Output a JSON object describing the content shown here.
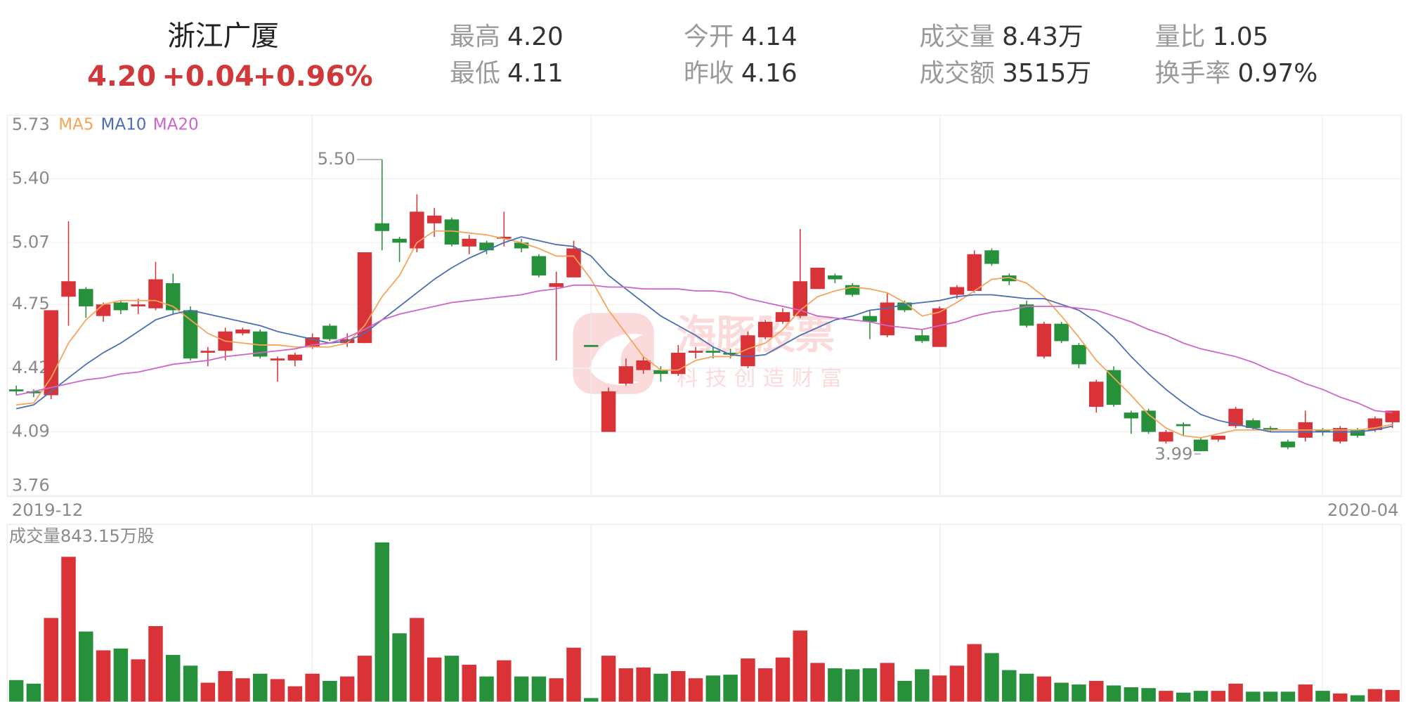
{
  "header": {
    "name": "浙江广厦",
    "price": "4.20",
    "change": "+0.04",
    "change_pct": "+0.96%",
    "stats": [
      {
        "label": "最高",
        "value": "4.20"
      },
      {
        "label": "最低",
        "value": "4.11"
      },
      {
        "label": "今开",
        "value": "4.14"
      },
      {
        "label": "昨收",
        "value": "4.16"
      },
      {
        "label": "成交量",
        "value": "8.43万"
      },
      {
        "label": "成交额",
        "value": "3515万"
      },
      {
        "label": "量比",
        "value": "1.05"
      },
      {
        "label": "换手率",
        "value": "0.97%"
      }
    ]
  },
  "watermark": {
    "name": "海豚股票",
    "slogan": "科技创造财富"
  },
  "chart_data": [
    {
      "type": "candlestick",
      "x_labels": [
        "2019-12",
        "2020-04"
      ],
      "ylim": [
        3.76,
        5.73
      ],
      "yticks": [
        5.73,
        {
          "value": 5.4,
          "label": "5.40"
        },
        5.07,
        4.75,
        4.42,
        4.09,
        3.76
      ],
      "grid": true,
      "up_color": "#d93237",
      "down_color": "#27903a",
      "open": [
        4.31,
        4.3,
        4.28,
        4.79,
        4.83,
        4.69,
        4.76,
        4.74,
        4.73,
        4.86,
        4.72,
        4.5,
        4.51,
        4.6,
        4.61,
        4.46,
        4.46,
        4.53,
        4.64,
        4.55,
        4.55,
        5.17,
        5.09,
        5.04,
        5.17,
        5.19,
        5.05,
        5.07,
        5.09,
        5.07,
        5.0,
        4.84,
        4.89,
        4.54,
        4.09,
        4.34,
        4.41,
        4.41,
        4.39,
        4.5,
        4.51,
        4.5,
        4.43,
        4.58,
        4.66,
        4.69,
        4.83,
        4.9,
        4.85,
        4.69,
        4.59,
        4.76,
        4.59,
        4.53,
        4.8,
        4.82,
        5.03,
        4.9,
        4.75,
        4.48,
        4.65,
        4.54,
        4.22,
        4.41,
        4.19,
        4.2,
        4.04,
        4.13,
        4.05,
        4.05,
        4.12,
        4.15,
        4.11,
        4.04,
        4.06,
        4.1,
        4.04,
        4.1,
        4.1,
        4.14
      ],
      "high": [
        4.33,
        4.31,
        4.72,
        5.18,
        4.84,
        4.76,
        4.77,
        4.78,
        4.97,
        4.91,
        4.74,
        4.53,
        4.63,
        4.63,
        4.62,
        4.48,
        4.5,
        4.6,
        4.65,
        4.6,
        5.02,
        5.5,
        5.1,
        5.32,
        5.25,
        5.2,
        5.11,
        5.08,
        5.23,
        5.09,
        5.01,
        4.92,
        5.08,
        4.54,
        4.32,
        4.47,
        4.48,
        4.43,
        4.54,
        4.53,
        4.53,
        4.52,
        4.61,
        4.67,
        4.73,
        5.14,
        4.94,
        4.91,
        4.86,
        4.72,
        4.81,
        4.77,
        4.62,
        4.74,
        4.85,
        5.03,
        5.04,
        4.91,
        4.77,
        4.66,
        4.66,
        4.55,
        4.36,
        4.43,
        4.2,
        4.21,
        4.1,
        4.14,
        4.06,
        4.07,
        4.22,
        4.16,
        4.12,
        4.05,
        4.2,
        4.11,
        4.12,
        4.11,
        4.17,
        4.2
      ],
      "low": [
        4.28,
        4.27,
        4.26,
        4.64,
        4.68,
        4.66,
        4.7,
        4.7,
        4.72,
        4.7,
        4.46,
        4.43,
        4.46,
        4.59,
        4.47,
        4.35,
        4.43,
        4.52,
        4.56,
        4.53,
        4.55,
        5.03,
        4.97,
        5.02,
        5.1,
        5.05,
        5.01,
        5.01,
        5.05,
        5.02,
        4.89,
        4.46,
        4.89,
        4.53,
        4.09,
        4.33,
        4.39,
        4.35,
        4.38,
        4.47,
        4.47,
        4.47,
        4.42,
        4.57,
        4.65,
        4.68,
        4.83,
        4.86,
        4.79,
        4.57,
        4.58,
        4.71,
        4.55,
        4.53,
        4.78,
        4.81,
        4.95,
        4.85,
        4.63,
        4.47,
        4.55,
        4.42,
        4.19,
        4.22,
        4.08,
        4.08,
        4.03,
        4.07,
        3.99,
        4.04,
        4.11,
        4.1,
        4.09,
        4.0,
        4.04,
        4.07,
        4.03,
        4.06,
        4.09,
        4.11
      ],
      "close": [
        4.3,
        4.29,
        4.72,
        4.87,
        4.74,
        4.75,
        4.72,
        4.75,
        4.88,
        4.72,
        4.47,
        4.51,
        4.61,
        4.62,
        4.48,
        4.47,
        4.49,
        4.58,
        4.57,
        4.57,
        5.02,
        5.13,
        5.07,
        5.23,
        5.21,
        5.06,
        5.09,
        5.03,
        5.1,
        5.04,
        4.9,
        4.86,
        5.04,
        4.53,
        4.3,
        4.43,
        4.46,
        4.39,
        4.5,
        4.51,
        4.5,
        4.49,
        4.59,
        4.66,
        4.71,
        4.87,
        4.94,
        4.88,
        4.8,
        4.66,
        4.76,
        4.72,
        4.56,
        4.73,
        4.84,
        5.01,
        4.96,
        4.87,
        4.64,
        4.65,
        4.56,
        4.44,
        4.35,
        4.23,
        4.16,
        4.09,
        4.09,
        4.12,
        3.99,
        4.07,
        4.21,
        4.11,
        4.1,
        4.01,
        4.14,
        4.09,
        4.11,
        4.07,
        4.16,
        4.2
      ],
      "high_label": {
        "value": 5.5,
        "label": "5.50"
      },
      "low_label": 3.99,
      "series": [
        {
          "name": "MA5",
          "color": "#f5a55a",
          "values": [
            4.23,
            4.24,
            4.37,
            4.55,
            4.67,
            4.75,
            4.77,
            4.77,
            4.77,
            4.74,
            4.67,
            4.6,
            4.56,
            4.55,
            4.54,
            4.54,
            4.53,
            4.53,
            4.53,
            4.55,
            4.64,
            4.79,
            4.9,
            5.07,
            5.13,
            5.13,
            5.12,
            5.11,
            5.09,
            5.07,
            5.04,
            5.0,
            5.0,
            4.88,
            4.72,
            4.6,
            4.48,
            4.41,
            4.41,
            4.46,
            4.48,
            4.48,
            4.52,
            4.55,
            4.62,
            4.72,
            4.79,
            4.82,
            4.84,
            4.83,
            4.81,
            4.76,
            4.69,
            4.71,
            4.76,
            4.82,
            4.88,
            4.89,
            4.86,
            4.79,
            4.69,
            4.58,
            4.46,
            4.37,
            4.28,
            4.18,
            4.11,
            4.07,
            4.06,
            4.08,
            4.1,
            4.1,
            4.1,
            4.1,
            4.1,
            4.1,
            4.1,
            4.1,
            4.11,
            4.13
          ]
        },
        {
          "name": "MA10",
          "color": "#4a6fb5",
          "values": [
            4.21,
            4.23,
            4.3,
            4.37,
            4.44,
            4.5,
            4.55,
            4.61,
            4.67,
            4.7,
            4.72,
            4.7,
            4.68,
            4.66,
            4.64,
            4.61,
            4.59,
            4.57,
            4.55,
            4.56,
            4.6,
            4.67,
            4.74,
            4.81,
            4.88,
            4.94,
            4.99,
            5.03,
            5.07,
            5.1,
            5.08,
            5.06,
            5.05,
            5.0,
            4.9,
            4.83,
            4.76,
            4.69,
            4.64,
            4.59,
            4.53,
            4.49,
            4.48,
            4.49,
            4.54,
            4.59,
            4.63,
            4.67,
            4.69,
            4.72,
            4.73,
            4.75,
            4.76,
            4.77,
            4.79,
            4.8,
            4.8,
            4.79,
            4.78,
            4.78,
            4.75,
            4.72,
            4.66,
            4.58,
            4.48,
            4.39,
            4.31,
            4.24,
            4.18,
            4.15,
            4.13,
            4.11,
            4.09,
            4.09,
            4.09,
            4.09,
            4.09,
            4.09,
            4.1,
            4.12
          ]
        },
        {
          "name": "MA20",
          "color": "#cc66cc",
          "values": [
            4.28,
            4.3,
            4.32,
            4.34,
            4.36,
            4.37,
            4.39,
            4.4,
            4.42,
            4.44,
            4.45,
            4.46,
            4.48,
            4.49,
            4.5,
            4.51,
            4.52,
            4.54,
            4.55,
            4.58,
            4.62,
            4.67,
            4.7,
            4.72,
            4.74,
            4.76,
            4.77,
            4.78,
            4.79,
            4.8,
            4.82,
            4.83,
            4.85,
            4.85,
            4.84,
            4.84,
            4.83,
            4.83,
            4.83,
            4.82,
            4.82,
            4.81,
            4.78,
            4.76,
            4.74,
            4.72,
            4.69,
            4.68,
            4.67,
            4.66,
            4.64,
            4.63,
            4.62,
            4.64,
            4.66,
            4.69,
            4.71,
            4.72,
            4.74,
            4.74,
            4.74,
            4.73,
            4.72,
            4.69,
            4.66,
            4.62,
            4.59,
            4.55,
            4.52,
            4.5,
            4.48,
            4.45,
            4.41,
            4.38,
            4.34,
            4.31,
            4.27,
            4.24,
            4.2,
            4.19
          ]
        }
      ]
    },
    {
      "type": "bar",
      "title": "成交量843.15万股",
      "values": [
        1560,
        1300,
        6050,
        10470,
        5070,
        3710,
        3840,
        3060,
        5460,
        3380,
        2600,
        1370,
        2210,
        1690,
        2020,
        1630,
        1110,
        2020,
        1500,
        1820,
        3320,
        11510,
        4940,
        6050,
        3190,
        3320,
        2670,
        1820,
        2990,
        1820,
        1820,
        1690,
        3900,
        260,
        3320,
        2410,
        2470,
        2020,
        2210,
        1690,
        1890,
        1950,
        3120,
        2410,
        3190,
        5140,
        2800,
        2410,
        2340,
        2410,
        2800,
        1500,
        2340,
        1890,
        2600,
        4160,
        3510,
        2280,
        2020,
        1820,
        1370,
        1240,
        1500,
        1170,
        1040,
        980,
        780,
        650,
        780,
        780,
        1300,
        720,
        720,
        720,
        1240,
        780,
        590,
        460,
        910,
        843.15
      ]
    }
  ]
}
